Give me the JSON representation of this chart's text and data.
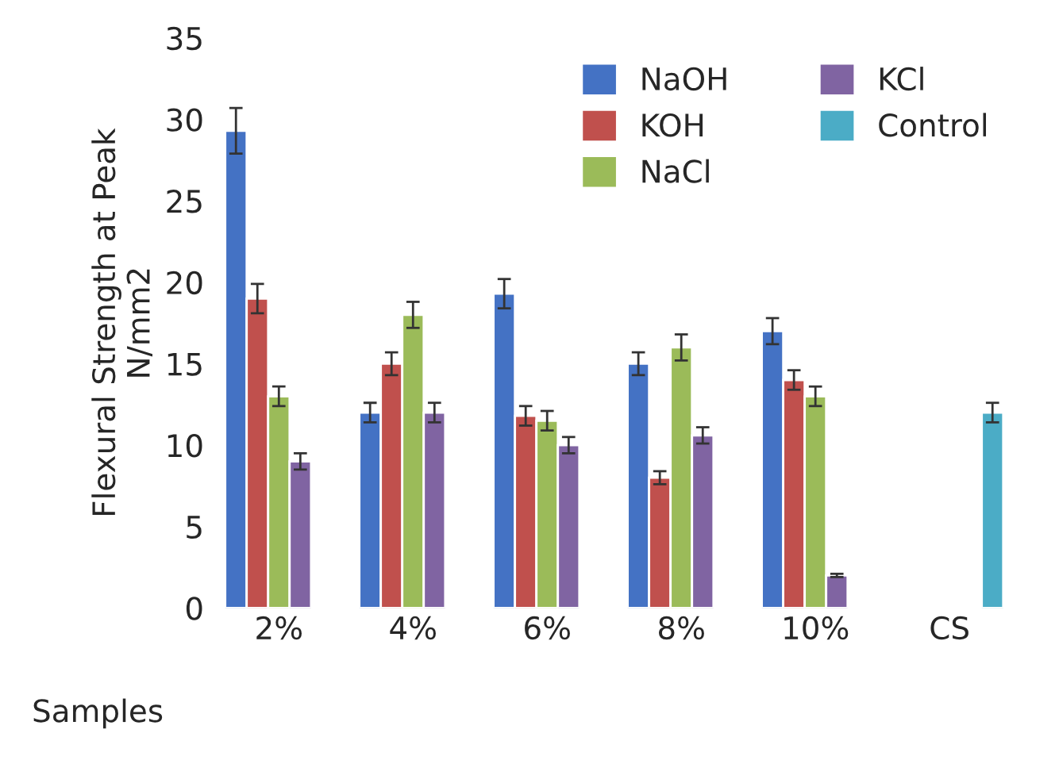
{
  "chart_data": {
    "type": "bar",
    "ylabel": "Flexural Strength at Peak\nN/mm2",
    "xlabel": "Samples",
    "categories": [
      "2%",
      "4%",
      "6%",
      "8%",
      "10%",
      "CS"
    ],
    "series": [
      {
        "name": "NaOH",
        "color": "#4472c4",
        "values": [
          29.3,
          12,
          19.3,
          15,
          17,
          null
        ],
        "errors": [
          1.4,
          0.6,
          0.9,
          0.7,
          0.8,
          null
        ]
      },
      {
        "name": "KOH",
        "color": "#c0504d",
        "values": [
          19,
          15,
          11.8,
          8,
          14,
          null
        ],
        "errors": [
          0.9,
          0.7,
          0.6,
          0.4,
          0.6,
          null
        ]
      },
      {
        "name": "NaCl",
        "color": "#9bbb59",
        "values": [
          13,
          18,
          11.5,
          16,
          13,
          null
        ],
        "errors": [
          0.6,
          0.8,
          0.6,
          0.8,
          0.6,
          null
        ]
      },
      {
        "name": "KCl",
        "color": "#8064a2",
        "values": [
          9,
          12,
          10,
          10.6,
          2,
          null
        ],
        "errors": [
          0.5,
          0.6,
          0.5,
          0.5,
          0.1,
          null
        ]
      },
      {
        "name": "Control",
        "color": "#4bacc6",
        "values": [
          null,
          null,
          null,
          null,
          null,
          12
        ],
        "errors": [
          null,
          null,
          null,
          null,
          null,
          0.6
        ]
      }
    ],
    "ylim": [
      0,
      35
    ],
    "yticks": [
      0,
      5,
      10,
      15,
      20,
      25,
      30,
      35
    ],
    "grid": false,
    "legend": "top right"
  }
}
